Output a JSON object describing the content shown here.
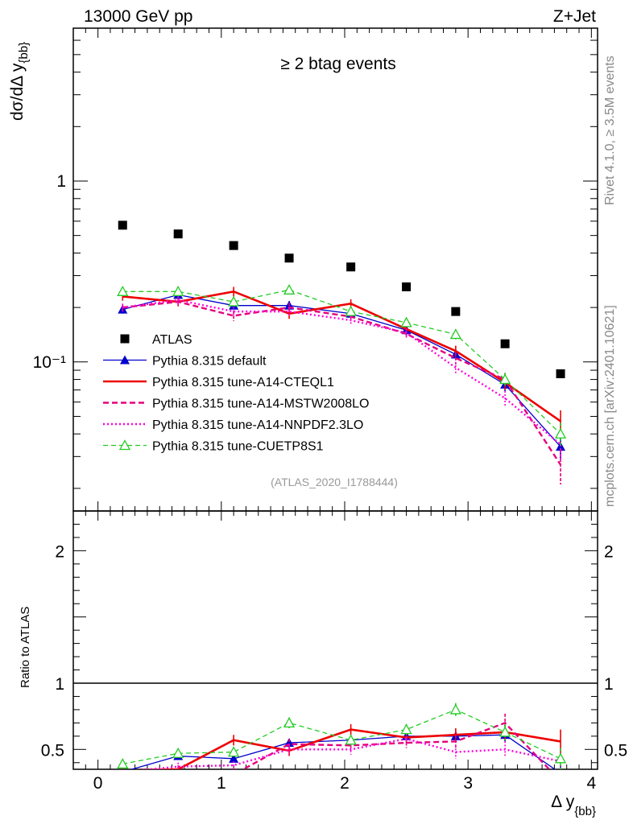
{
  "header": {
    "left": "13000 GeV pp",
    "right": "Z+Jet"
  },
  "side_text": {
    "rivet": "Rivet 4.1.0, ≥ 3.5M events",
    "site": "mcplots.cern.ch [arXiv:2401.10621]"
  },
  "colors": {
    "atlas": "#000000",
    "default": "#0000cc",
    "cteql1": "#ee0000",
    "mstw": "#e5007d",
    "nnpdf": "#ff00dd",
    "cuetp": "#22cc22"
  },
  "chart_data": {
    "type": "line",
    "title": "≥ 2 btag events",
    "watermark": "(ATLAS_2020_I1788444)",
    "xlabel_main": "Δ y",
    "xlabel_sub": "{bb}",
    "ylabel_main": "dσ/dΔ y",
    "ylabel_sub": "{bb}",
    "ratio_ylabel": "Ratio to ATLAS",
    "xlim": [
      -0.2,
      4.05
    ],
    "ylim_main": [
      0.015,
      7.0
    ],
    "ylog": true,
    "ylim_ratio": [
      0.35,
      2.3
    ],
    "x_ticks": [
      0,
      1,
      2,
      3,
      4
    ],
    "x_tick_labels": [
      "0",
      "1",
      "2",
      "3",
      "4"
    ],
    "y_ticks_main": [
      0.1,
      1
    ],
    "y_tick_labels_main": [
      "10⁻¹",
      "1"
    ],
    "y_ticks_ratio": [
      0.5,
      1,
      2
    ],
    "y_tick_labels_ratio": [
      "0.5",
      "1",
      "2"
    ],
    "x": [
      0.2,
      0.65,
      1.1,
      1.55,
      2.05,
      2.5,
      2.9,
      3.3,
      3.75
    ],
    "series": [
      {
        "name": "ATLAS",
        "key": "atlas",
        "style": "square",
        "values": [
          0.57,
          0.51,
          0.44,
          0.375,
          0.335,
          0.26,
          0.19,
          0.126,
          0.086
        ],
        "ratio": [
          1,
          1,
          1,
          1,
          1,
          1,
          1,
          1,
          1
        ]
      },
      {
        "name": "Pythia 8.315 default",
        "key": "default",
        "style": "solid-thin-triangle",
        "values": [
          0.195,
          0.235,
          0.205,
          0.205,
          0.185,
          0.15,
          0.11,
          0.075,
          0.034
        ],
        "errors": [
          0.01,
          0.012,
          0.01,
          0.012,
          0.01,
          0.008,
          0.007,
          0.006,
          0.005
        ],
        "ratio": [
          0.33,
          0.45,
          0.43,
          0.55,
          0.57,
          0.6,
          0.6,
          0.61,
          0.32
        ],
        "ratio_err": [
          0.02,
          0.03,
          0.03,
          0.03,
          0.03,
          0.03,
          0.04,
          0.05,
          0.06
        ]
      },
      {
        "name": "Pythia 8.315 tune-A14-CTEQL1",
        "key": "cteql1",
        "style": "solid-thick",
        "values": [
          0.23,
          0.215,
          0.245,
          0.185,
          0.21,
          0.152,
          0.115,
          0.077,
          0.047
        ],
        "errors": [
          0.012,
          0.012,
          0.015,
          0.012,
          0.012,
          0.009,
          0.008,
          0.007,
          0.007
        ],
        "ratio": [
          0.34,
          0.35,
          0.57,
          0.49,
          0.65,
          0.59,
          0.61,
          0.63,
          0.56
        ],
        "ratio_err": [
          0.02,
          0.03,
          0.04,
          0.04,
          0.04,
          0.04,
          0.05,
          0.06,
          0.09
        ]
      },
      {
        "name": "Pythia 8.315 tune-A14-MSTW2008LO",
        "key": "mstw",
        "style": "dashed",
        "values": [
          0.2,
          0.215,
          0.18,
          0.2,
          0.178,
          0.143,
          0.105,
          0.08,
          0.027
        ],
        "errors": [
          0.01,
          0.012,
          0.012,
          0.012,
          0.01,
          0.008,
          0.008,
          0.007,
          0.006
        ],
        "ratio": [
          0.3,
          0.33,
          0.31,
          0.54,
          0.53,
          0.55,
          0.56,
          0.7,
          0.26
        ],
        "ratio_err": [
          0.02,
          0.03,
          0.03,
          0.04,
          0.04,
          0.04,
          0.05,
          0.07,
          0.06
        ]
      },
      {
        "name": "Pythia 8.315 tune-A14-NNPDF2.3LO",
        "key": "nnpdf",
        "style": "dotted",
        "values": [
          0.2,
          0.22,
          0.19,
          0.19,
          0.17,
          0.145,
          0.093,
          0.063,
          0.035
        ],
        "errors": [
          0.01,
          0.012,
          0.011,
          0.011,
          0.01,
          0.008,
          0.007,
          0.006,
          0.006
        ],
        "ratio": [
          0.33,
          0.37,
          0.38,
          0.5,
          0.5,
          0.58,
          0.48,
          0.5,
          0.41
        ],
        "ratio_err": [
          0.02,
          0.03,
          0.03,
          0.04,
          0.04,
          0.04,
          0.05,
          0.06,
          0.07
        ]
      },
      {
        "name": "Pythia 8.315 tune-CUETP8S1",
        "key": "cuetp",
        "style": "dashed-thin-open-triangle",
        "values": [
          0.245,
          0.245,
          0.215,
          0.25,
          0.19,
          0.165,
          0.142,
          0.08,
          0.04
        ],
        "errors": [
          0.012,
          0.012,
          0.012,
          0.012,
          0.01,
          0.009,
          0.009,
          0.007,
          0.006
        ],
        "ratio": [
          0.39,
          0.47,
          0.48,
          0.7,
          0.57,
          0.65,
          0.8,
          0.63,
          0.43
        ],
        "ratio_err": [
          0.03,
          0.03,
          0.03,
          0.04,
          0.04,
          0.04,
          0.05,
          0.06,
          0.08
        ]
      }
    ]
  }
}
